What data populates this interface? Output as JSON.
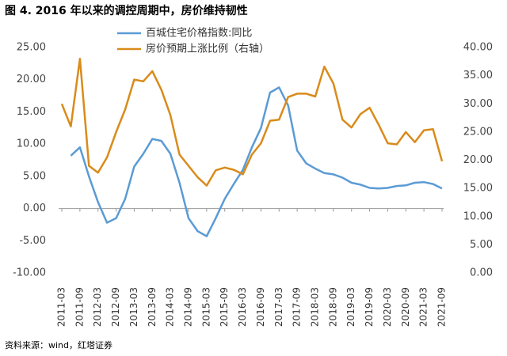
{
  "chart_data": {
    "type": "line",
    "title": "图 4. 2016 年以来的调控周期中，房价维持韧性",
    "source": "资料来源：wind，红塔证券",
    "categories": [
      "2011-03",
      null,
      "2011-09",
      null,
      "2012-03",
      null,
      "2012-09",
      null,
      "2013-03",
      null,
      "2013-09",
      null,
      "2014-03",
      null,
      "2014-09",
      null,
      "2015-03",
      null,
      "2015-09",
      null,
      "2016-03",
      null,
      "2016-09",
      null,
      "2017-03",
      null,
      "2017-09",
      null,
      "2018-03",
      null,
      "2018-09",
      null,
      "2019-03",
      null,
      "2019-09",
      null,
      "2020-03",
      null,
      "2020-09",
      null,
      "2021-03",
      null,
      "2021-09"
    ],
    "series": [
      {
        "name": "百城住宅价格指数:同比",
        "color": "#5b9bd5",
        "axis": "y",
        "values": [
          null,
          8.2,
          9.5,
          5,
          1,
          -2.2,
          -1.5,
          1.5,
          6.5,
          8.5,
          10.8,
          10.5,
          8.5,
          4,
          -1.5,
          -3.5,
          -4.3,
          -1.5,
          1.5,
          3.8,
          6,
          9.5,
          12.5,
          18,
          18.8,
          16,
          9,
          7,
          6.2,
          5.5,
          5.3,
          4.8,
          4,
          3.7,
          3.2,
          3.1,
          3.2,
          3.5,
          3.6,
          4,
          4.1,
          3.8,
          3.1
        ]
      },
      {
        "name": "房价预期上涨比例（右轴）",
        "color": "#d98b1a",
        "axis": "y2",
        "values": [
          30,
          26,
          38,
          19,
          17.8,
          20.5,
          25,
          29,
          34.3,
          34,
          35.8,
          32.5,
          28,
          21,
          19,
          17,
          15.5,
          18.2,
          18.7,
          18.3,
          17.5,
          21,
          23,
          27,
          27.2,
          31.2,
          31.8,
          31.8,
          31.3,
          36.6,
          33.6,
          27.2,
          25.8,
          28.2,
          29.3,
          26.3,
          23,
          22.8,
          25,
          23.2,
          25.3,
          25.5,
          19.8
        ]
      }
    ],
    "ylim": [
      -10,
      25
    ],
    "yticks": [
      {
        "value": -10,
        "label": "-10.00"
      },
      {
        "value": -5,
        "label": "-5.00"
      },
      {
        "value": 0,
        "label": "0.00"
      },
      {
        "value": 5,
        "label": "5.00"
      },
      {
        "value": 10,
        "label": "10.00"
      },
      {
        "value": 15,
        "label": "15.00"
      },
      {
        "value": 20,
        "label": "20.00"
      },
      {
        "value": 25,
        "label": "25.00"
      }
    ],
    "y2lim": [
      0,
      40
    ],
    "y2ticks": [
      {
        "value": 0,
        "label": "0.00"
      },
      {
        "value": 5,
        "label": "5.00"
      },
      {
        "value": 10,
        "label": "10.00"
      },
      {
        "value": 15,
        "label": "15.00"
      },
      {
        "value": 20,
        "label": "20.00"
      },
      {
        "value": 25,
        "label": "25.00"
      },
      {
        "value": 30,
        "label": "30.00"
      },
      {
        "value": 35,
        "label": "35.00"
      },
      {
        "value": 40,
        "label": "40.00"
      }
    ],
    "grid": false,
    "legend": "top"
  }
}
